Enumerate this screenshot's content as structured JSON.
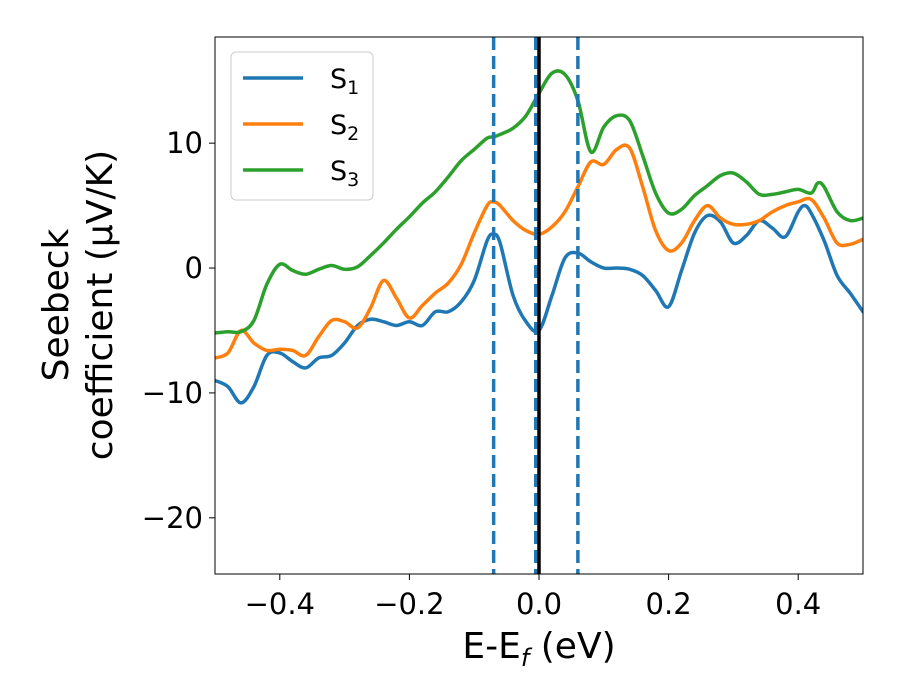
{
  "chart_data": {
    "type": "line",
    "xlabel": "E-E",
    "xlabel_sub": "f",
    "xlabel_unit": " (eV)",
    "ylabel_line1": "Seebeck",
    "ylabel_line2": "coefficient  (μV/K)",
    "xlim": [
      -0.5,
      0.5
    ],
    "ylim": [
      -24.5,
      18.5
    ],
    "xticks": [
      -0.4,
      -0.2,
      0.0,
      0.2,
      0.4
    ],
    "xtick_labels": [
      "−0.4",
      "−0.2",
      "0.0",
      "0.2",
      "0.4"
    ],
    "yticks": [
      -20,
      -10,
      0,
      10
    ],
    "ytick_labels": [
      "−20",
      "−10",
      "0",
      "10"
    ],
    "legend_position": "top-left",
    "vlines": [
      {
        "x": -0.07,
        "style": "dashed",
        "color": "#1f77b4"
      },
      {
        "x": -0.005,
        "style": "dashed",
        "color": "#1f77b4"
      },
      {
        "x": 0.0,
        "style": "solid",
        "color": "#000000"
      },
      {
        "x": 0.06,
        "style": "dashed",
        "color": "#1f77b4"
      }
    ],
    "series": [
      {
        "name": "S",
        "sub": "1",
        "color": "#1f77b4",
        "x": [
          -0.5,
          -0.48,
          -0.46,
          -0.44,
          -0.42,
          -0.4,
          -0.38,
          -0.36,
          -0.34,
          -0.32,
          -0.3,
          -0.28,
          -0.26,
          -0.24,
          -0.22,
          -0.2,
          -0.18,
          -0.16,
          -0.14,
          -0.12,
          -0.1,
          -0.08,
          -0.07,
          -0.06,
          -0.04,
          -0.02,
          0.0,
          0.02,
          0.04,
          0.06,
          0.08,
          0.1,
          0.12,
          0.14,
          0.16,
          0.18,
          0.2,
          0.22,
          0.24,
          0.26,
          0.28,
          0.3,
          0.32,
          0.34,
          0.36,
          0.38,
          0.4,
          0.41,
          0.42,
          0.44,
          0.46,
          0.48,
          0.5
        ],
        "y": [
          -9,
          -9.5,
          -10.8,
          -9.5,
          -7,
          -6.8,
          -7.5,
          -8,
          -7.2,
          -7,
          -6,
          -4.6,
          -4.1,
          -4.3,
          -4.6,
          -4.3,
          -4.6,
          -3.5,
          -3.5,
          -2.7,
          -1,
          2.2,
          2.7,
          2,
          -2.2,
          -4.3,
          -5,
          -2.2,
          0.8,
          1.2,
          0.5,
          0,
          0,
          -0.1,
          -0.6,
          -1.8,
          -3.1,
          -0.2,
          2.8,
          4.2,
          3.7,
          2,
          2.6,
          3.8,
          3.2,
          2.5,
          4.5,
          5,
          4.4,
          2.2,
          -0.6,
          -2,
          -3.5
        ]
      },
      {
        "name": "S",
        "sub": "2",
        "color": "#ff7f0e",
        "x": [
          -0.5,
          -0.48,
          -0.46,
          -0.44,
          -0.42,
          -0.4,
          -0.38,
          -0.36,
          -0.34,
          -0.32,
          -0.3,
          -0.28,
          -0.26,
          -0.24,
          -0.22,
          -0.2,
          -0.18,
          -0.16,
          -0.14,
          -0.12,
          -0.1,
          -0.08,
          -0.07,
          -0.06,
          -0.04,
          -0.02,
          0.0,
          0.02,
          0.04,
          0.06,
          0.08,
          0.1,
          0.12,
          0.14,
          0.16,
          0.18,
          0.2,
          0.22,
          0.24,
          0.26,
          0.28,
          0.3,
          0.32,
          0.34,
          0.36,
          0.38,
          0.4,
          0.42,
          0.44,
          0.46,
          0.48,
          0.5
        ],
        "y": [
          -7.2,
          -6.8,
          -5,
          -6,
          -6.6,
          -6.5,
          -6.6,
          -7,
          -5.5,
          -4.2,
          -4.3,
          -4.8,
          -3.2,
          -1,
          -2.4,
          -4,
          -3,
          -2,
          -1.2,
          0.3,
          2.8,
          5,
          5.3,
          5,
          3.8,
          3,
          2.7,
          3.3,
          4.5,
          6.5,
          8.5,
          8.3,
          9.5,
          9.6,
          6.5,
          3,
          1.4,
          2,
          3.8,
          5,
          4,
          3.5,
          3.5,
          3.8,
          4.5,
          5,
          5.3,
          5.5,
          4,
          2,
          1.9,
          2.3
        ]
      },
      {
        "name": "S",
        "sub": "3",
        "color": "#2ca02c",
        "x": [
          -0.5,
          -0.48,
          -0.46,
          -0.44,
          -0.42,
          -0.4,
          -0.38,
          -0.36,
          -0.34,
          -0.32,
          -0.3,
          -0.28,
          -0.26,
          -0.24,
          -0.22,
          -0.2,
          -0.18,
          -0.16,
          -0.14,
          -0.12,
          -0.1,
          -0.08,
          -0.07,
          -0.06,
          -0.04,
          -0.02,
          0.0,
          0.02,
          0.04,
          0.06,
          0.08,
          0.1,
          0.12,
          0.14,
          0.16,
          0.18,
          0.2,
          0.22,
          0.24,
          0.26,
          0.28,
          0.3,
          0.32,
          0.34,
          0.36,
          0.38,
          0.4,
          0.42,
          0.43,
          0.44,
          0.46,
          0.48,
          0.5
        ],
        "y": [
          -5.2,
          -5.1,
          -5.1,
          -4.2,
          -1.3,
          0.3,
          -0.2,
          -0.5,
          -0.1,
          0.2,
          -0.1,
          0.1,
          1,
          2,
          3.1,
          4.1,
          5.2,
          6.1,
          7.3,
          8.6,
          9.5,
          10.4,
          10.5,
          10.7,
          11.2,
          12.2,
          14,
          15.6,
          15.5,
          13.4,
          9.3,
          11.3,
          12.2,
          11.8,
          9,
          6,
          4.4,
          4.7,
          5.8,
          6.6,
          7.4,
          7.6,
          6.9,
          5.9,
          5.9,
          6.1,
          6.3,
          6,
          6.8,
          6.5,
          4.5,
          3.8,
          4
        ]
      }
    ]
  }
}
